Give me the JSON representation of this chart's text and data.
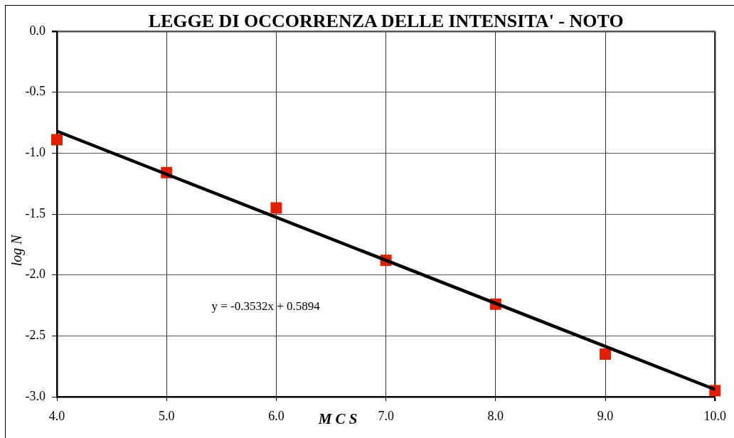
{
  "chart_data": {
    "type": "scatter",
    "title": "LEGGE DI OCCORRENZA DELLE INTENSITA' - NOTO",
    "xlabel": "M C S",
    "ylabel": "log N",
    "x": [
      4,
      5,
      6,
      7,
      8,
      9,
      10
    ],
    "series": [
      {
        "type": "scatter",
        "color": "#e21f00",
        "marker": "square",
        "values": [
          -0.89,
          -1.16,
          -1.45,
          -1.88,
          -2.24,
          -2.65,
          -2.95
        ]
      },
      {
        "type": "line",
        "color": "#000000",
        "marker": "none",
        "x": [
          4,
          10
        ],
        "values": [
          -0.82,
          -2.94
        ]
      }
    ],
    "xlim": [
      4,
      10
    ],
    "xticks": [
      {
        "value": 4,
        "label": "4.0"
      },
      {
        "value": 5,
        "label": "5.0"
      },
      {
        "value": 6,
        "label": "6.0"
      },
      {
        "value": 7,
        "label": "7.0"
      },
      {
        "value": 8,
        "label": "8.0"
      },
      {
        "value": 9,
        "label": "9.0"
      },
      {
        "value": 10,
        "label": "10.0"
      }
    ],
    "ylim": [
      -3,
      0
    ],
    "yticks": [
      {
        "value": 0,
        "label": "0.0"
      },
      -0.5,
      {
        "value": -1,
        "label": "-1.0"
      },
      -1.5,
      {
        "value": -2,
        "label": "-2.0"
      },
      -2.5,
      {
        "value": -3,
        "label": "-3.0"
      }
    ],
    "annotations": [
      "y = -0.3532x + 0.5894"
    ],
    "grid": true,
    "legend": false
  }
}
